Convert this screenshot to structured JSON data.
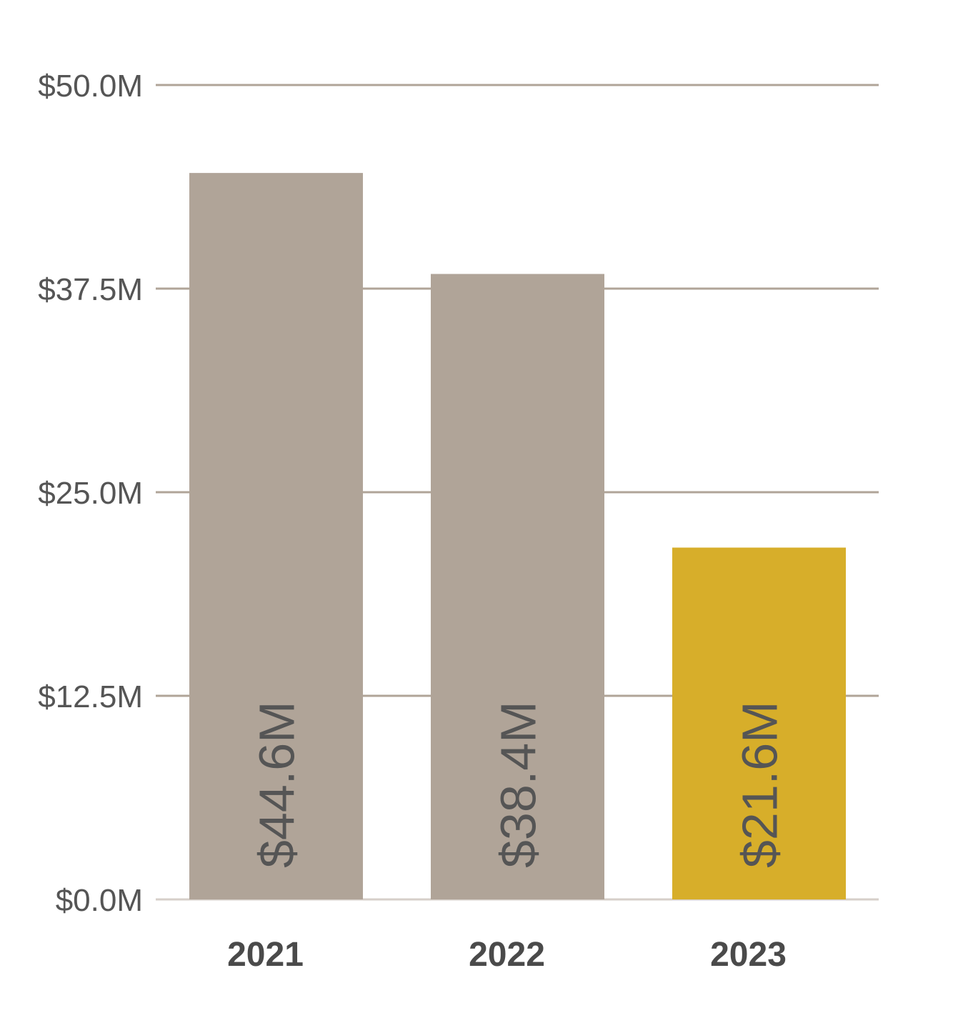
{
  "chart_data": {
    "type": "bar",
    "categories": [
      "2021",
      "2022",
      "2023"
    ],
    "values": [
      44.6,
      38.4,
      21.6
    ],
    "data_labels": [
      "$44.6M",
      "$38.4M",
      "$21.6M"
    ],
    "y_ticks": [
      {
        "value": 0,
        "label": "$0.0M"
      },
      {
        "value": 12.5,
        "label": "$12.5M"
      },
      {
        "value": 25,
        "label": "$25.0M"
      },
      {
        "value": 37.5,
        "label": "$37.5M"
      },
      {
        "value": 50,
        "label": "$50.0M"
      }
    ],
    "ylim": [
      0,
      50
    ],
    "grid": true,
    "title": "",
    "xlabel": "",
    "ylabel": "",
    "colors": {
      "bar_default": "#b0a498",
      "bar_highlight": "#d7ae2a",
      "gridline": "#b0a498",
      "baseline": "#d6cfc9"
    },
    "highlight_index": 2
  }
}
